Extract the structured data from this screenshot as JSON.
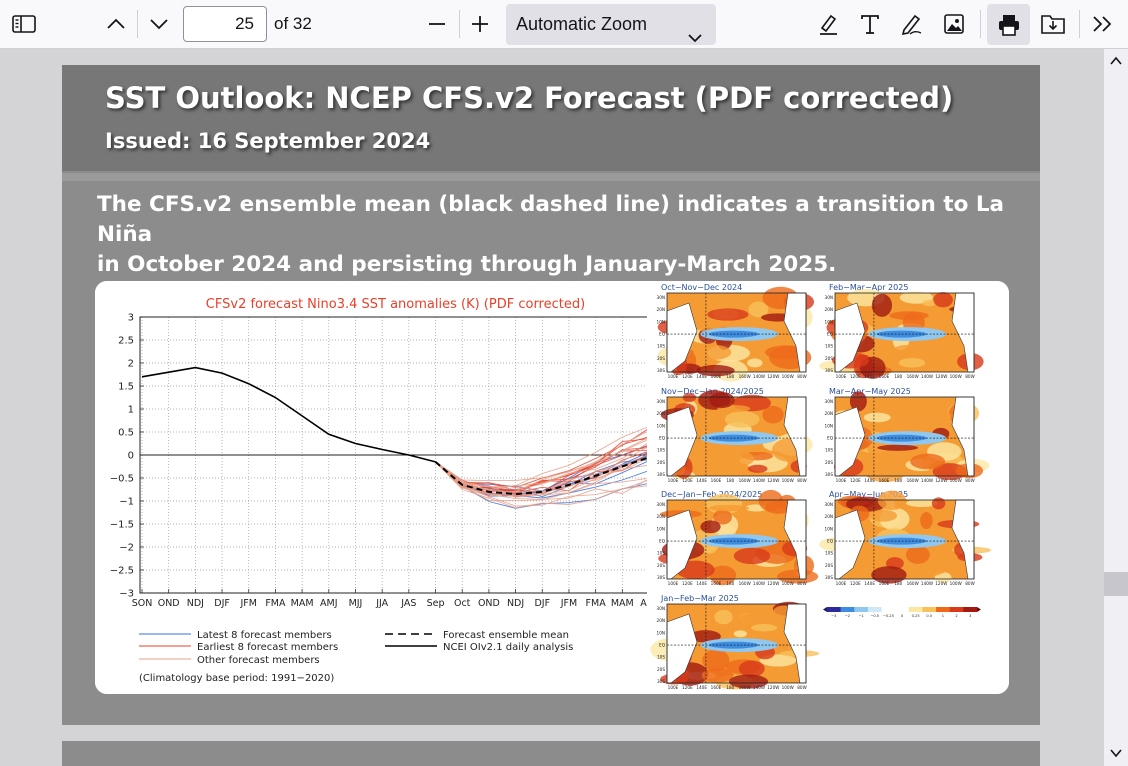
{
  "toolbar": {
    "current_page": "25",
    "page_count_label": "of 32",
    "zoom_label": "Automatic Zoom",
    "icons": [
      "sidebar-toggle-icon",
      "previous-page-icon",
      "next-page-icon",
      "zoom-out-icon",
      "zoom-in-icon",
      "highlight-icon",
      "text-icon",
      "draw-icon",
      "image-icon",
      "print-icon",
      "save-icon",
      "tools-icon"
    ]
  },
  "slide": {
    "title": "SST Outlook: NCEP CFS.v2 Forecast (PDF corrected)",
    "issued": "Issued: 16 September 2024",
    "body_line1": "The CFS.v2 ensemble mean (black dashed line) indicates a transition to La Niña",
    "body_line2": "in October 2024 and persisting through January-March 2025.",
    "colors": {
      "header_bg": "#777777",
      "slide_bg": "#8c8c8c"
    }
  },
  "chart_data": [
    {
      "type": "line",
      "title": "CFSv2 forecast Nino3.4 SST anomalies (K) (PDF corrected)",
      "x_categories": [
        "SON",
        "OND",
        "NDJ",
        "DJF",
        "JFM",
        "FMA",
        "MAM",
        "AMJ",
        "MJJ",
        "JJA",
        "JAS",
        "Sep",
        "Oct",
        "OND",
        "NDJ",
        "DJF",
        "JFM",
        "FMA",
        "MAM",
        "AMJ"
      ],
      "yticks": [
        "3",
        "2.5",
        "2",
        "1.5",
        "1",
        "0.5",
        "0",
        "−0.5",
        "−1",
        "−1.5",
        "−2",
        "−2.5",
        "−3"
      ],
      "ylim": [
        -3,
        3
      ],
      "series": [
        {
          "name": "NCEI OIv2.1 daily analysis",
          "color": "#000000",
          "style": "solid",
          "x_index": [
            0,
            2,
            3,
            4,
            5,
            6,
            7,
            8,
            9,
            10,
            11
          ],
          "values": [
            1.7,
            1.9,
            1.78,
            1.55,
            1.25,
            0.85,
            0.45,
            0.25,
            0.12,
            0.0,
            -0.15
          ]
        },
        {
          "name": "Forecast ensemble mean",
          "color": "#000000",
          "style": "dashed",
          "x_index": [
            11,
            12,
            13,
            14,
            15,
            16,
            17,
            18,
            19
          ],
          "values": [
            -0.15,
            -0.65,
            -0.8,
            -0.85,
            -0.8,
            -0.65,
            -0.45,
            -0.25,
            -0.05
          ]
        },
        {
          "name": "Latest 8 forecast members",
          "color": "#3a6fd8",
          "style": "thin"
        },
        {
          "name": "Earliest 8 forecast members",
          "color": "#e8402a",
          "style": "thin"
        },
        {
          "name": "Other forecast members",
          "color": "#e8a08a",
          "style": "thin"
        }
      ],
      "footnote": "(Climatology base period: 1991−2020)"
    },
    {
      "type": "heatmap",
      "panels": [
        {
          "label": "Oct−Nov−Dec 2024"
        },
        {
          "label": "Feb−Mar−Apr 2025"
        },
        {
          "label": "Nov−Dec−Jan 2024/2025"
        },
        {
          "label": "Mar−Apr−May 2025"
        },
        {
          "label": "Dec−Jan−Feb 2024/2025"
        },
        {
          "label": "Apr−May−Jun 2025"
        },
        {
          "label": "Jan−Feb−Mar 2025"
        }
      ],
      "lat_labels": [
        "30N",
        "20N",
        "10N",
        "EQ",
        "10S",
        "20S",
        "30S"
      ],
      "lon_labels": [
        "100E",
        "120E",
        "140E",
        "160E",
        "180",
        "160W",
        "140W",
        "120W",
        "100W",
        "80W"
      ],
      "colorbar_ticks": [
        "−3",
        "−2",
        "−1",
        "−0.5",
        "−0.25",
        "0",
        "0.25",
        "0.5",
        "1",
        "2",
        "3"
      ]
    }
  ]
}
